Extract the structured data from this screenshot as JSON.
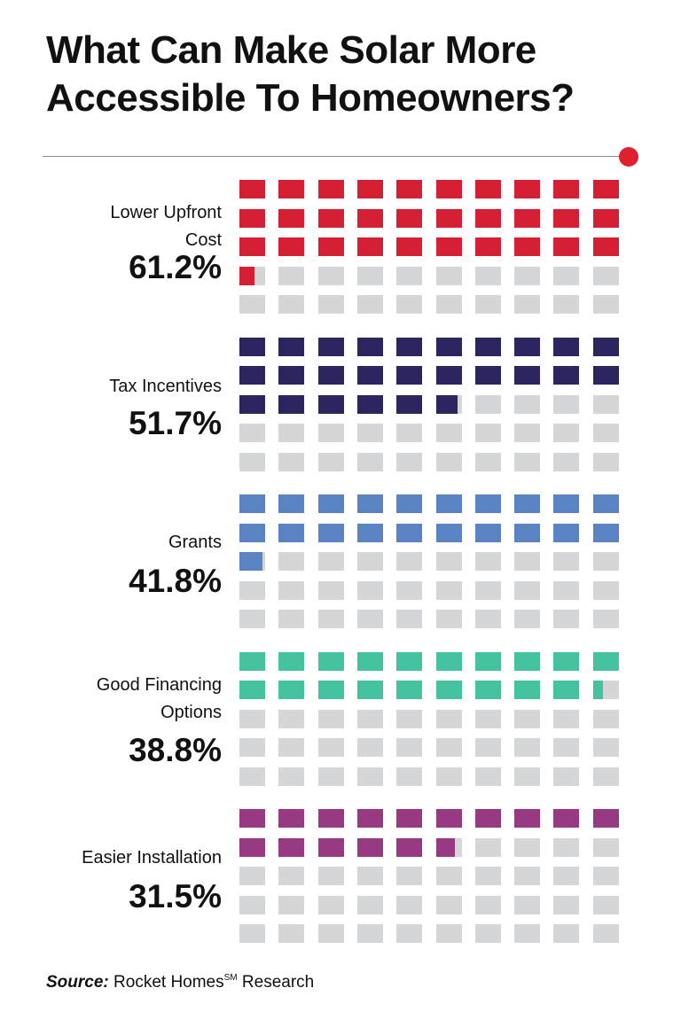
{
  "colors": {
    "gray": "#d5d6d8",
    "accent": "#e0202f",
    "rule": "#8a8a8a"
  },
  "chart_data": {
    "type": "waffle",
    "title": "What Can Make Solar More Accessible To Homeowners?",
    "units_per_chart": 50,
    "series": [
      {
        "name": "Lower Upfront Cost",
        "label_lines": [
          "Lower Upfront",
          "Cost"
        ],
        "value": 61.2,
        "display": "61.2%",
        "color": "#d61f35"
      },
      {
        "name": "Tax Incentives",
        "label_lines": [
          "Tax Incentives"
        ],
        "value": 51.7,
        "display": "51.7%",
        "color": "#2b2560"
      },
      {
        "name": "Grants",
        "label_lines": [
          "Grants"
        ],
        "value": 41.8,
        "display": "41.8%",
        "color": "#5a83c4"
      },
      {
        "name": "Good Financing Options",
        "label_lines": [
          "Good Financing",
          "Options"
        ],
        "value": 38.8,
        "display": "38.8%",
        "color": "#45c3a0"
      },
      {
        "name": "Easier Installation",
        "label_lines": [
          "Easier Installation"
        ],
        "value": 31.5,
        "display": "31.5%",
        "color": "#983a82"
      }
    ]
  },
  "source": {
    "key": "Source:",
    "text": "Rocket Homes",
    "mark": "SM",
    "suffix": "Research"
  }
}
